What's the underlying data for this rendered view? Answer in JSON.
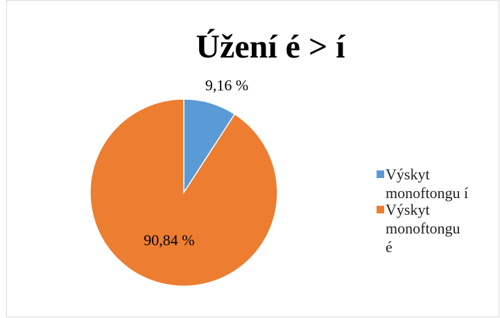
{
  "chart_data": {
    "type": "pie",
    "title": "Úžení é > í",
    "categories": [
      "Výskyt monoftongu í",
      "Výskyt monoftongu é"
    ],
    "values": [
      9.16,
      90.84
    ],
    "value_labels": [
      "9,16 %",
      "90,84 %"
    ],
    "colors": [
      "#5b9bd5",
      "#ed7d31"
    ],
    "legend": "right"
  }
}
